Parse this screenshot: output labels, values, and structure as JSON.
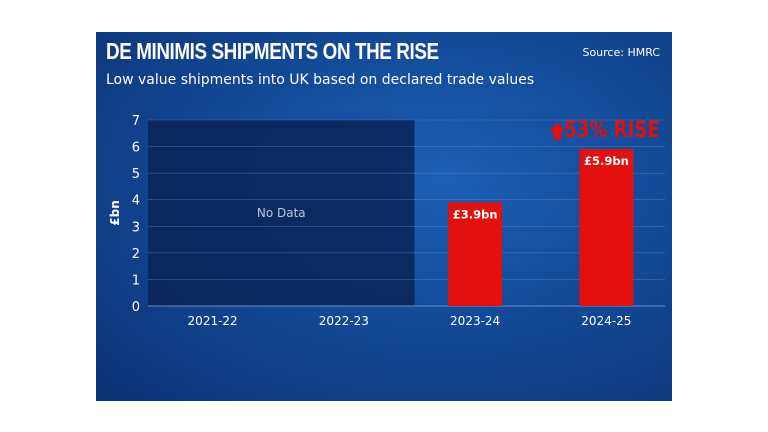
{
  "chart_data": {
    "type": "bar",
    "title": "DE MINIMIS SHIPMENTS ON THE RISE",
    "subtitle": "Low value shipments into UK based on declared trade values",
    "source": "Source: HMRC",
    "categories": [
      "2021-22",
      "2022-23",
      "2023-24",
      "2024-25"
    ],
    "values": [
      null,
      null,
      3.9,
      5.9
    ],
    "data_labels": [
      "",
      "",
      "£3.9bn",
      "£5.9bn"
    ],
    "no_data_label": "No Data",
    "annotation": "53% RISE",
    "xlabel": "",
    "ylabel": "£bn",
    "ylim": [
      0,
      7
    ],
    "yticks": [
      0,
      1,
      2,
      3,
      4,
      5,
      6,
      7
    ],
    "grid": true,
    "colors": {
      "bar": "#e3100f",
      "no_data": "#0a2357",
      "annotation": "#e3100f",
      "background": "#1553a6"
    }
  }
}
